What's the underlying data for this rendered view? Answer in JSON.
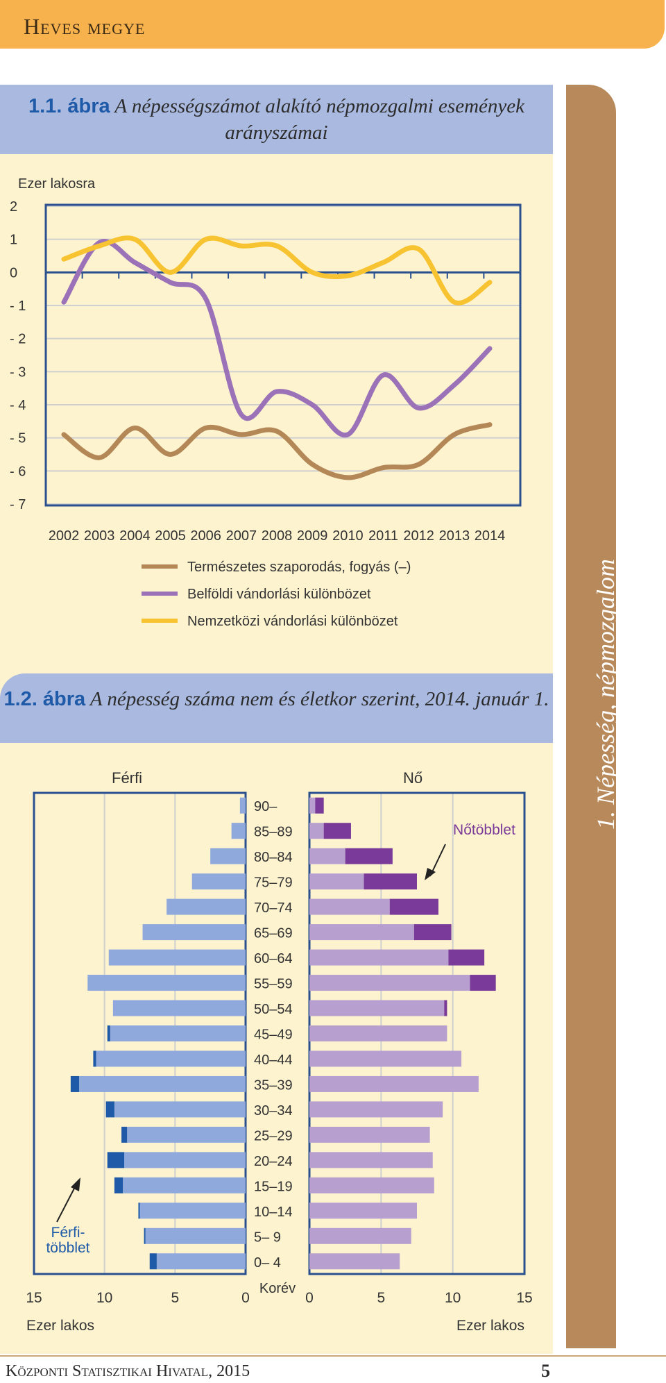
{
  "header": {
    "title": "Heves megye"
  },
  "sidebar": {
    "title": "1. Népesség, népmozgalom"
  },
  "footer": {
    "text": "Központi Statisztikai Hivatal, 2015",
    "page": "5"
  },
  "fig1": {
    "num": "1.1. ábra",
    "title": "A népességszámot alakító népmozgalmi események arányszámai"
  },
  "fig2": {
    "num": "1.2. ábra",
    "title": "A népesség száma nem és életkor szerint, 2014. január 1."
  },
  "chart_data": [
    {
      "type": "line",
      "ylabel": "Ezer lakosra",
      "ylim": [
        -7,
        2
      ],
      "yticks": [
        "2",
        "1",
        "0",
        "- 1",
        "- 2",
        "- 3",
        "- 4",
        "- 5",
        "- 6",
        "- 7"
      ],
      "x": [
        "2002",
        "2003",
        "2004",
        "2005",
        "2006",
        "2007",
        "2008",
        "2009",
        "2010",
        "2011",
        "2012",
        "2013",
        "2014"
      ],
      "grid": true,
      "legend_position": "bottom",
      "series": [
        {
          "name": "Természetes szaporodás, fogyás (–)",
          "color": "#b48757",
          "values": [
            -4.9,
            -5.6,
            -4.7,
            -5.5,
            -4.7,
            -4.9,
            -4.8,
            -5.8,
            -6.2,
            -5.9,
            -5.8,
            -4.9,
            -4.6
          ]
        },
        {
          "name": "Belföldi vándorlási különbözet",
          "color": "#9b72b8",
          "values": [
            -0.9,
            0.9,
            0.3,
            -0.3,
            -0.8,
            -4.3,
            -3.6,
            -4.0,
            -4.9,
            -3.1,
            -4.1,
            -3.4,
            -2.3
          ]
        },
        {
          "name": "Nemzetközi vándorlási különbözet",
          "color": "#f7c330",
          "values": [
            0.4,
            0.8,
            1.0,
            0.0,
            1.0,
            0.8,
            0.8,
            0.0,
            -0.1,
            0.3,
            0.7,
            -0.9,
            -0.3
          ]
        }
      ]
    },
    {
      "type": "bar",
      "orientation": "horizontal",
      "subtype": "population-pyramid",
      "left_label": "Férfi",
      "right_label": "Nő",
      "center_axis_label": "Korév",
      "xlabel_left": "Ezer lakos",
      "xlabel_right": "Ezer lakos",
      "xlim": [
        0,
        15
      ],
      "xticks_left": [
        "15",
        "10",
        "5",
        "0"
      ],
      "xticks_right": [
        "0",
        "5",
        "10",
        "15"
      ],
      "annotation_female": "Nőtöbblet",
      "annotation_male": "Férfi-\ntöbblet",
      "colors": {
        "male": "#8fa9dd",
        "male_excess": "#1f5aa8",
        "female": "#b79fd0",
        "female_excess": "#7a3a9a"
      },
      "categories": [
        "90–",
        "85–89",
        "80–84",
        "75–79",
        "70–74",
        "65–69",
        "60–64",
        "55–59",
        "50–54",
        "45–49",
        "40–44",
        "35–39",
        "30–34",
        "25–29",
        "20–24",
        "15–19",
        "10–14",
        "5– 9",
        "0– 4"
      ],
      "male": [
        0.4,
        1.0,
        2.5,
        3.8,
        5.6,
        7.3,
        9.7,
        11.2,
        9.4,
        9.8,
        10.8,
        12.4,
        9.9,
        8.8,
        9.8,
        9.3,
        7.6,
        7.2,
        6.8
      ],
      "female": [
        1.0,
        2.9,
        5.8,
        7.5,
        9.0,
        9.9,
        12.2,
        13.0,
        9.6,
        9.6,
        10.6,
        11.8,
        9.3,
        8.4,
        8.6,
        8.7,
        7.5,
        7.1,
        6.3
      ]
    }
  ]
}
